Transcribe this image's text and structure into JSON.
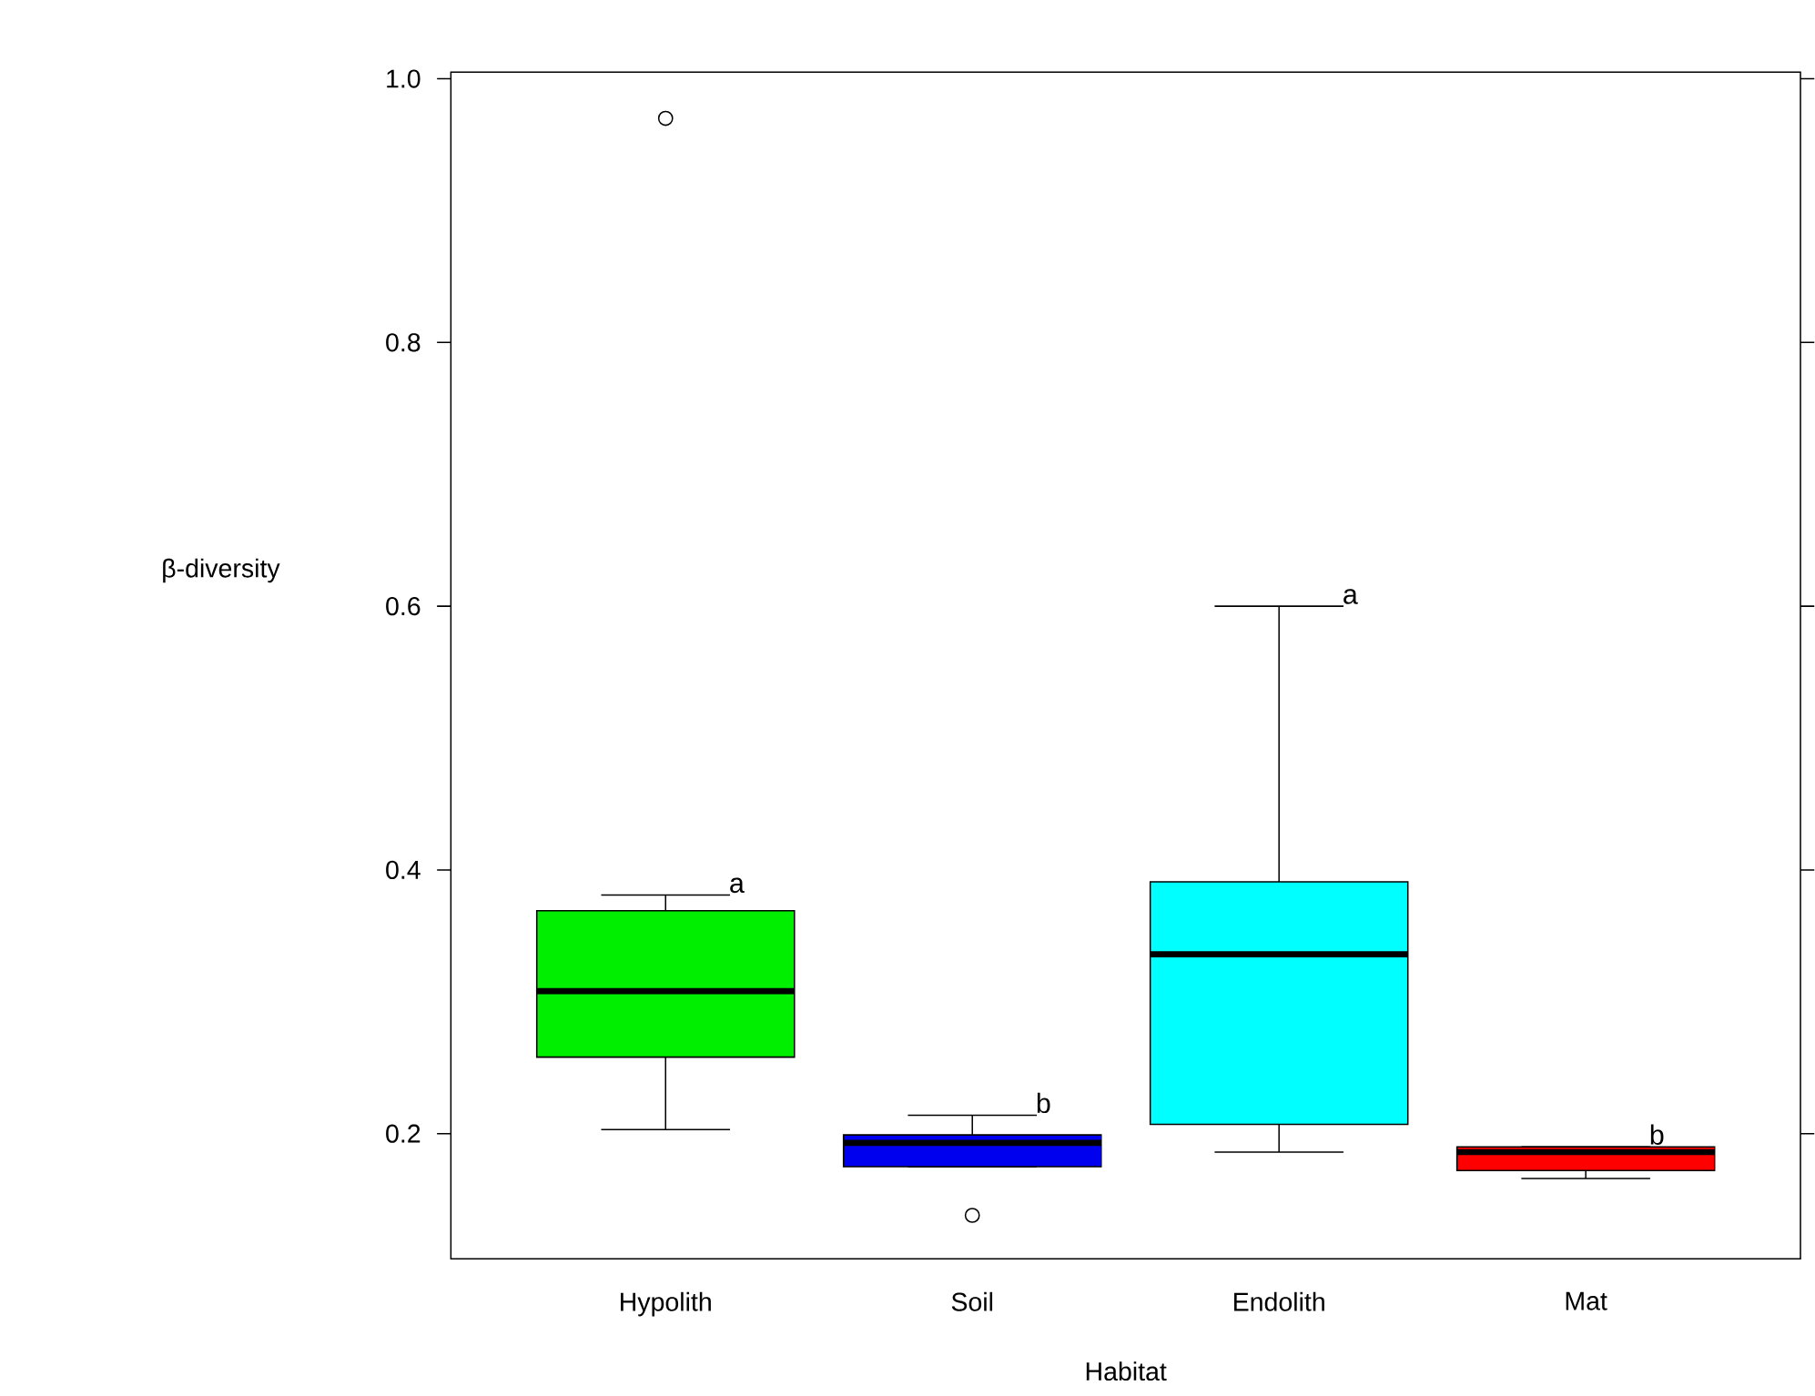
{
  "chart_data": {
    "type": "box",
    "xlabel": "Habitat",
    "ylabel": "β-diversity",
    "categories": [
      "Hypolith",
      "Soil",
      "Endolith",
      "Mat"
    ],
    "colors": [
      "#00ee00",
      "#0000ee",
      "#00ffff",
      "#ff0000"
    ],
    "boxes": [
      {
        "low": 0.203,
        "q1": 0.258,
        "median": 0.308,
        "q3": 0.369,
        "high": 0.381,
        "outliers": [
          0.97
        ]
      },
      {
        "low": 0.175,
        "q1": 0.175,
        "median": 0.193,
        "q3": 0.199,
        "high": 0.214,
        "outliers": [
          0.138
        ]
      },
      {
        "low": 0.186,
        "q1": 0.207,
        "median": 0.336,
        "q3": 0.391,
        "high": 0.6
      },
      {
        "low": 0.166,
        "q1": 0.172,
        "median": 0.186,
        "q3": 0.19,
        "high": 0.19
      }
    ],
    "ylim": [
      0.105,
      1.005
    ],
    "yticks": [
      0.2,
      0.4,
      0.6,
      0.8,
      {
        "value": 1.0,
        "label": "1.0"
      }
    ],
    "grid": false,
    "annotations": [
      "a",
      "b",
      "a",
      "b"
    ]
  }
}
